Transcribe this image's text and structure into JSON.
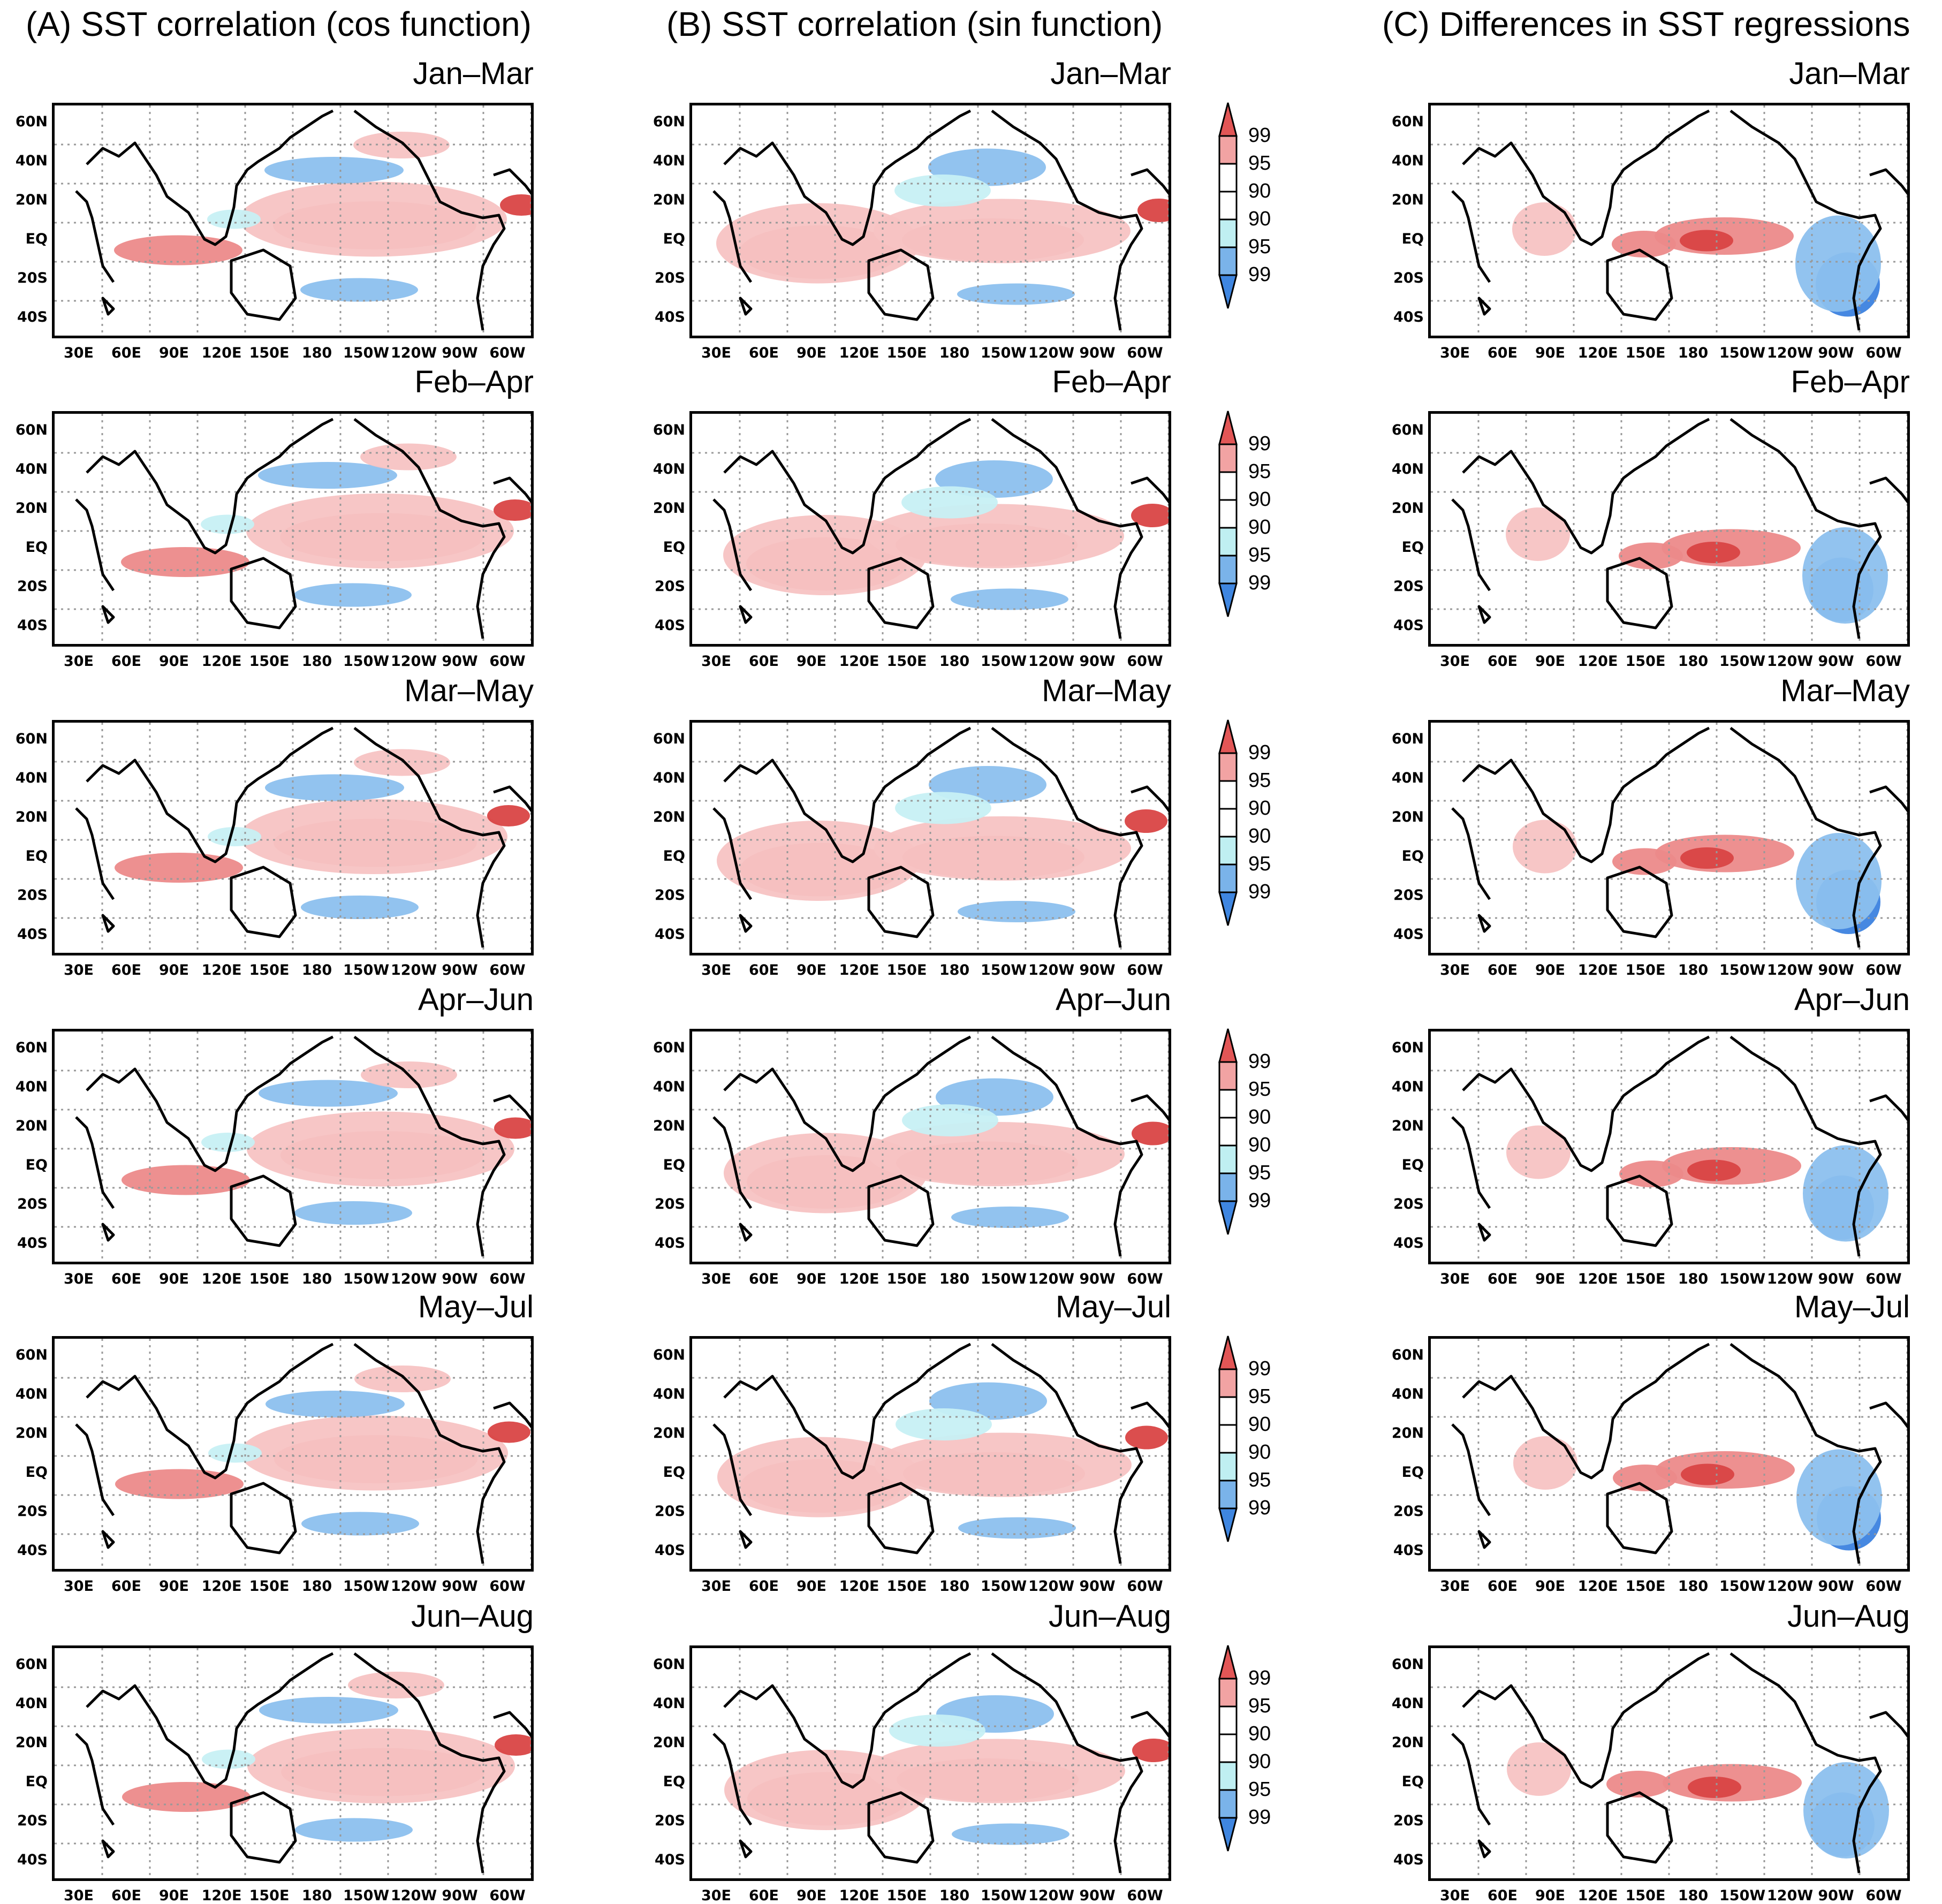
{
  "columns": [
    {
      "title": "(A) SST correlation (cos function)"
    },
    {
      "title": "(B) SST correlation (sin function)"
    },
    {
      "title": "(C) Differences in SST regressions"
    }
  ],
  "seasons": [
    "Jan–Mar",
    "Feb–Apr",
    "Mar–May",
    "Apr–Jun",
    "May–Jul",
    "Jun–Aug"
  ],
  "lat_labels": [
    "60N",
    "40N",
    "20N",
    "EQ",
    "20S",
    "40S"
  ],
  "lon_labels": [
    "30E",
    "60E",
    "90E",
    "120E",
    "150E",
    "180",
    "150W",
    "120W",
    "90W",
    "60W"
  ],
  "colorbar": {
    "labels": [
      "99",
      "95",
      "90",
      "90",
      "95",
      "99"
    ],
    "colors": [
      "#e25656",
      "#f2a3a3",
      "#ffffff",
      "#ffffff",
      "#bfeff2",
      "#7ab3ea",
      "#3f86e0"
    ]
  },
  "colors": {
    "pos_light": "#f7c3c3",
    "pos_mid": "#ec8a8a",
    "pos_dark": "#d94545",
    "neg_light": "#c7f0f4",
    "neg_mid": "#8cc0ee",
    "neg_dark": "#3c82df"
  }
}
